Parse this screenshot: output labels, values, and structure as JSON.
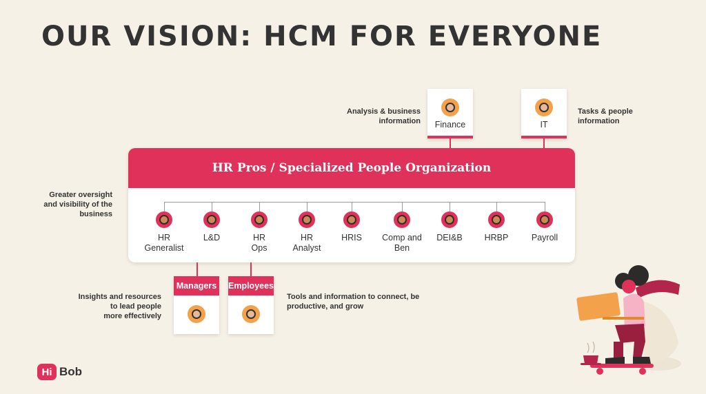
{
  "title": "OUR VISION: HCM FOR EVERYONE",
  "main": {
    "header": "HR Pros / Specialized People Organization",
    "roles": [
      {
        "label": "HR\nGeneralist"
      },
      {
        "label": "L&D"
      },
      {
        "label": "HR\nOps"
      },
      {
        "label": "HR\nAnalyst"
      },
      {
        "label": "HRIS"
      },
      {
        "label": "Comp and\nBen"
      },
      {
        "label": "DEI&B"
      },
      {
        "label": "HRBP"
      },
      {
        "label": "Payroll"
      }
    ]
  },
  "top_cards": {
    "finance": {
      "label": "Finance",
      "note": "Analysis & business\ninformation"
    },
    "it": {
      "label": "IT",
      "note": "Tasks & people\ninformation"
    }
  },
  "left_note": "Greater oversight\nand visibility of the\nbusiness",
  "bottom_cards": {
    "managers": {
      "label": "Managers",
      "note": "Insights and resources\nto lead people\nmore effectively"
    },
    "employees": {
      "label": "Employees",
      "note": "Tools and information to connect, be\nproductive, and grow"
    }
  },
  "logo": {
    "mark": "Hi",
    "word": "Bob"
  },
  "colors": {
    "accent": "#e0315a",
    "background": "#f6f1e6",
    "avatar_bg": "#f3a24b"
  }
}
